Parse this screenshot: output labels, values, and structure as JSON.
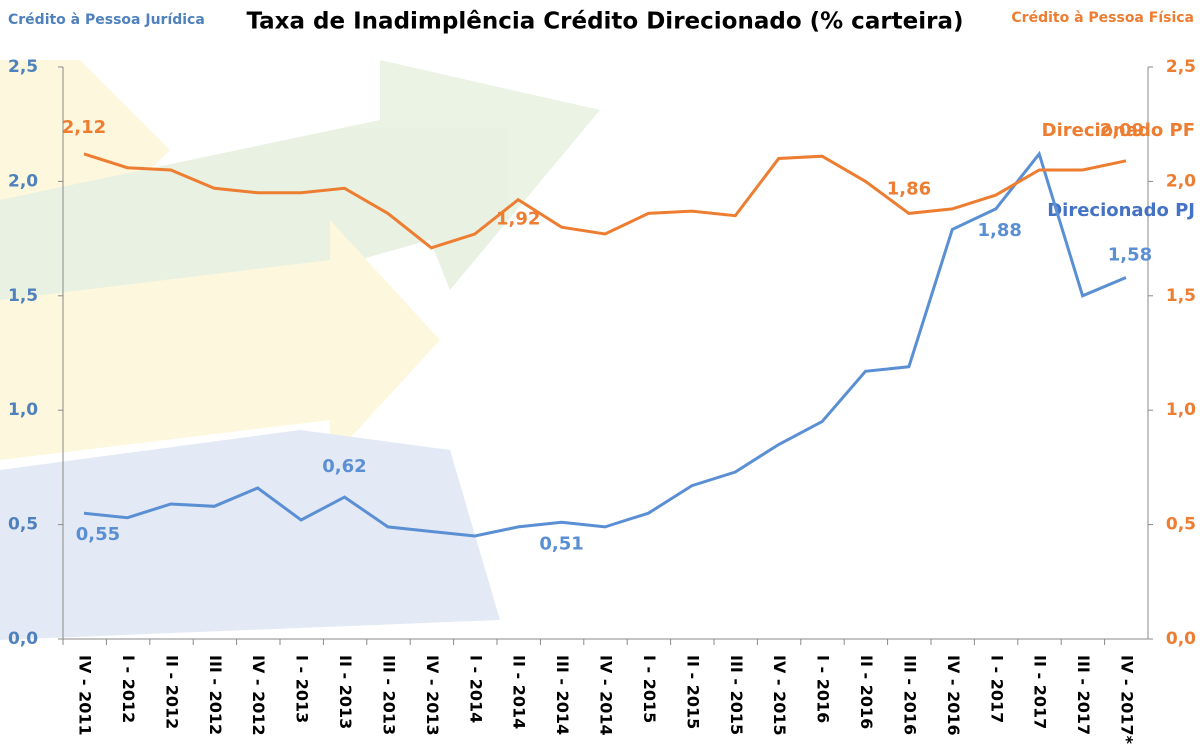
{
  "chart_data": {
    "type": "line",
    "title": "Taxa de Inadimplência Crédito Direcionado (% carteira)",
    "y_label": "Crédito à Pessoa Jurídica",
    "y2_label": "Crédito à Pessoa Física",
    "categories": [
      "IV - 2011",
      "I - 2012",
      "II - 2012",
      "III - 2012",
      "IV - 2012",
      "I - 2013",
      "II - 2013",
      "III - 2013",
      "IV - 2013",
      "I - 2014",
      "II - 2014",
      "III - 2014",
      "IV - 2014",
      "I - 2015",
      "II - 2015",
      "III - 2015",
      "IV - 2015",
      "I - 2016",
      "II - 2016",
      "III - 2016",
      "IV - 2016",
      "I - 2017",
      "II - 2017",
      "III - 2017",
      "IV - 2017*"
    ],
    "series": [
      {
        "name": "Direcionado PJ",
        "color": "#5b8fd4",
        "axis": "y",
        "values": [
          0.55,
          0.53,
          0.59,
          0.58,
          0.66,
          0.52,
          0.62,
          0.49,
          0.47,
          0.45,
          0.49,
          0.51,
          0.49,
          0.55,
          0.67,
          0.73,
          0.85,
          0.95,
          1.17,
          1.19,
          1.79,
          1.88,
          2.12,
          1.5,
          1.58
        ],
        "value_labels": [
          "0,55",
          null,
          null,
          null,
          null,
          null,
          "0,62",
          null,
          null,
          null,
          null,
          "0,51",
          null,
          null,
          null,
          null,
          null,
          null,
          null,
          null,
          null,
          "1,88",
          null,
          null,
          "1,58"
        ]
      },
      {
        "name": "Direcionado PF",
        "color": "#ed7d31",
        "axis": "y2",
        "values": [
          2.12,
          2.06,
          2.05,
          1.97,
          1.95,
          1.95,
          1.97,
          1.86,
          1.71,
          1.77,
          1.92,
          1.8,
          1.77,
          1.86,
          1.87,
          1.85,
          2.1,
          2.11,
          2.0,
          1.86,
          1.88,
          1.94,
          2.05,
          2.05,
          2.09
        ],
        "value_labels": [
          "2,12",
          null,
          null,
          null,
          null,
          null,
          null,
          null,
          null,
          null,
          "1,92",
          null,
          null,
          null,
          null,
          null,
          null,
          null,
          null,
          "1,86",
          null,
          null,
          null,
          null,
          "2,09"
        ]
      }
    ],
    "ylim": [
      0,
      2.5
    ],
    "yticks": [
      {
        "value": 0,
        "label": "0,0"
      },
      {
        "value": 0.5,
        "label": "0,5"
      },
      {
        "value": 1,
        "label": "1,0"
      },
      {
        "value": 1.5,
        "label": "1,5"
      },
      {
        "value": 2,
        "label": "2,0"
      },
      {
        "value": 2.5,
        "label": "2,5"
      }
    ],
    "y2lim": [
      0,
      2.5
    ],
    "y2ticks": [
      {
        "value": 0,
        "label": "0,0"
      },
      {
        "value": 0.5,
        "label": "0,5"
      },
      {
        "value": 1,
        "label": "1,0"
      },
      {
        "value": 1.5,
        "label": "1,5"
      },
      {
        "value": 2,
        "label": "2,0"
      },
      {
        "value": 2.5,
        "label": "2,5"
      }
    ]
  }
}
